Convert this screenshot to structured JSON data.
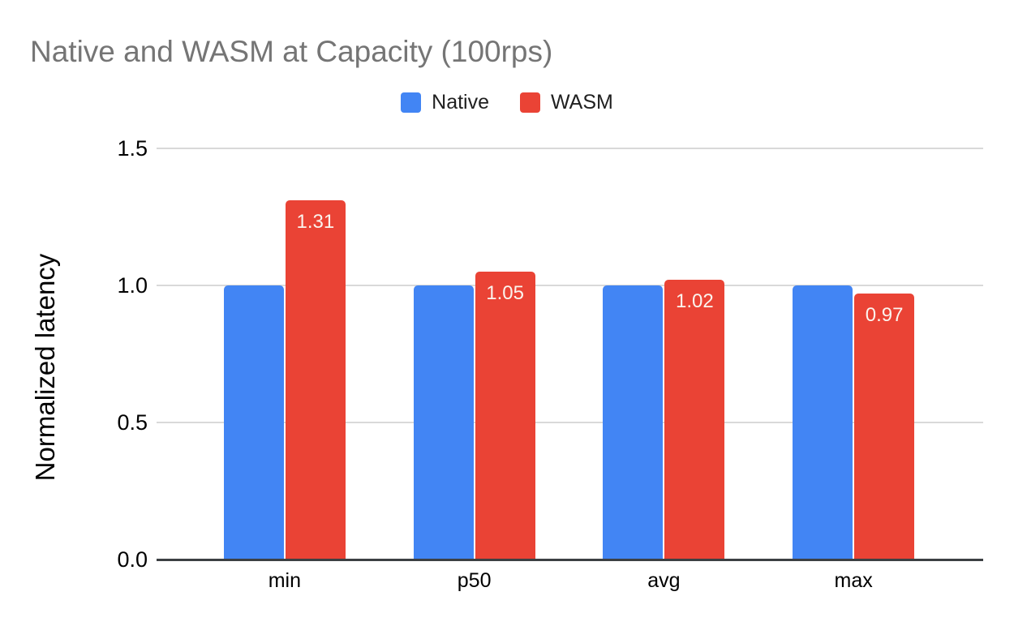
{
  "chart_data": {
    "type": "bar",
    "title": "Native and WASM at Capacity (100rps)",
    "categories": [
      "min",
      "p50",
      "avg",
      "max"
    ],
    "series": [
      {
        "name": "Native",
        "color": "#4285F4",
        "values": [
          1.0,
          1.0,
          1.0,
          1.0
        ],
        "labels": [
          "",
          "",
          "",
          ""
        ]
      },
      {
        "name": "WASM",
        "color": "#EA4335",
        "values": [
          1.31,
          1.05,
          1.02,
          0.97
        ],
        "labels": [
          "1.31",
          "1.05",
          "1.02",
          "0.97"
        ]
      }
    ],
    "xlabel": "",
    "ylabel": "Normalized latency",
    "ylim": [
      0,
      1.5
    ],
    "yticks": [
      "0.0",
      "0.5",
      "1.0",
      "1.5"
    ],
    "grid": true,
    "legend_position": "top",
    "colors": {
      "title_text": "#757575",
      "axis_text": "#000000",
      "gridline": "#d9d9d9",
      "axis_line": "#3c4043",
      "background": "#ffffff",
      "bar_value_label": "#fbf4ee"
    }
  }
}
